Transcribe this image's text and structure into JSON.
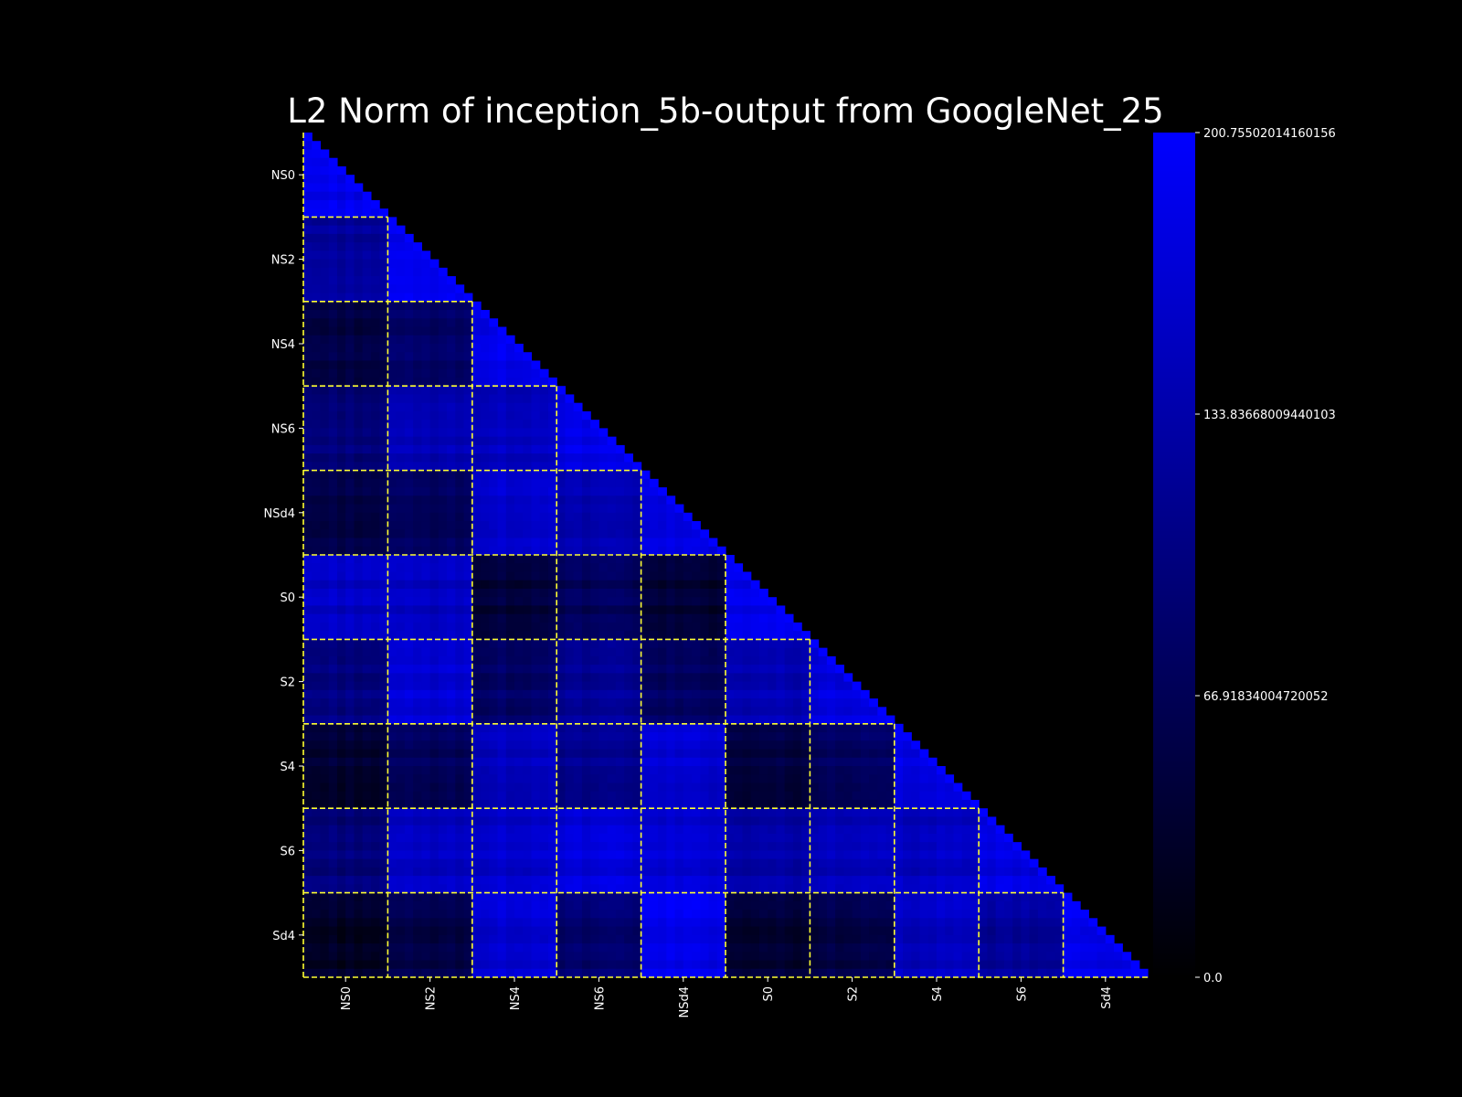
{
  "chart_data": {
    "type": "heatmap",
    "title": "L2 Norm of inception_5b-output from GoogleNet_25",
    "xlabel": "",
    "ylabel": "",
    "matrix_shape": "lower-triangular",
    "n_cells": 100,
    "groups": [
      "NS0",
      "NS2",
      "NS4",
      "NS6",
      "NSd4",
      "S0",
      "S2",
      "S4",
      "S6",
      "Sd4"
    ],
    "cells_per_group": 10,
    "x_tick_labels": [
      "NS0",
      "NS2",
      "NS4",
      "NS6",
      "NSd4",
      "S0",
      "S2",
      "S4",
      "S6",
      "Sd4"
    ],
    "y_tick_labels": [
      "NS0",
      "NS2",
      "NS4",
      "NS6",
      "NSd4",
      "S0",
      "S2",
      "S4",
      "S6",
      "Sd4"
    ],
    "block_mean_values": [
      [
        185
      ],
      [
        120,
        180
      ],
      [
        55,
        80,
        185
      ],
      [
        95,
        140,
        150,
        180
      ],
      [
        60,
        75,
        165,
        140,
        180
      ],
      [
        155,
        150,
        45,
        70,
        40,
        185
      ],
      [
        100,
        165,
        80,
        115,
        75,
        140,
        175
      ],
      [
        40,
        70,
        150,
        110,
        165,
        50,
        75,
        180
      ],
      [
        95,
        150,
        160,
        170,
        165,
        130,
        145,
        150,
        175
      ],
      [
        30,
        55,
        165,
        85,
        185,
        40,
        55,
        150,
        120,
        185
      ]
    ],
    "diagonal_value": 200.75502014160156,
    "colorbar": {
      "min": 0.0,
      "max": 200.75502014160156,
      "ticks": [
        "0.0",
        "66.91834004720052",
        "133.83668009440103",
        "200.75502014160156"
      ],
      "color_low": "#000000",
      "color_high": "#0000ff"
    },
    "grid": false,
    "block_separator_color": "#ffff33",
    "block_separator_style": "dashed"
  }
}
